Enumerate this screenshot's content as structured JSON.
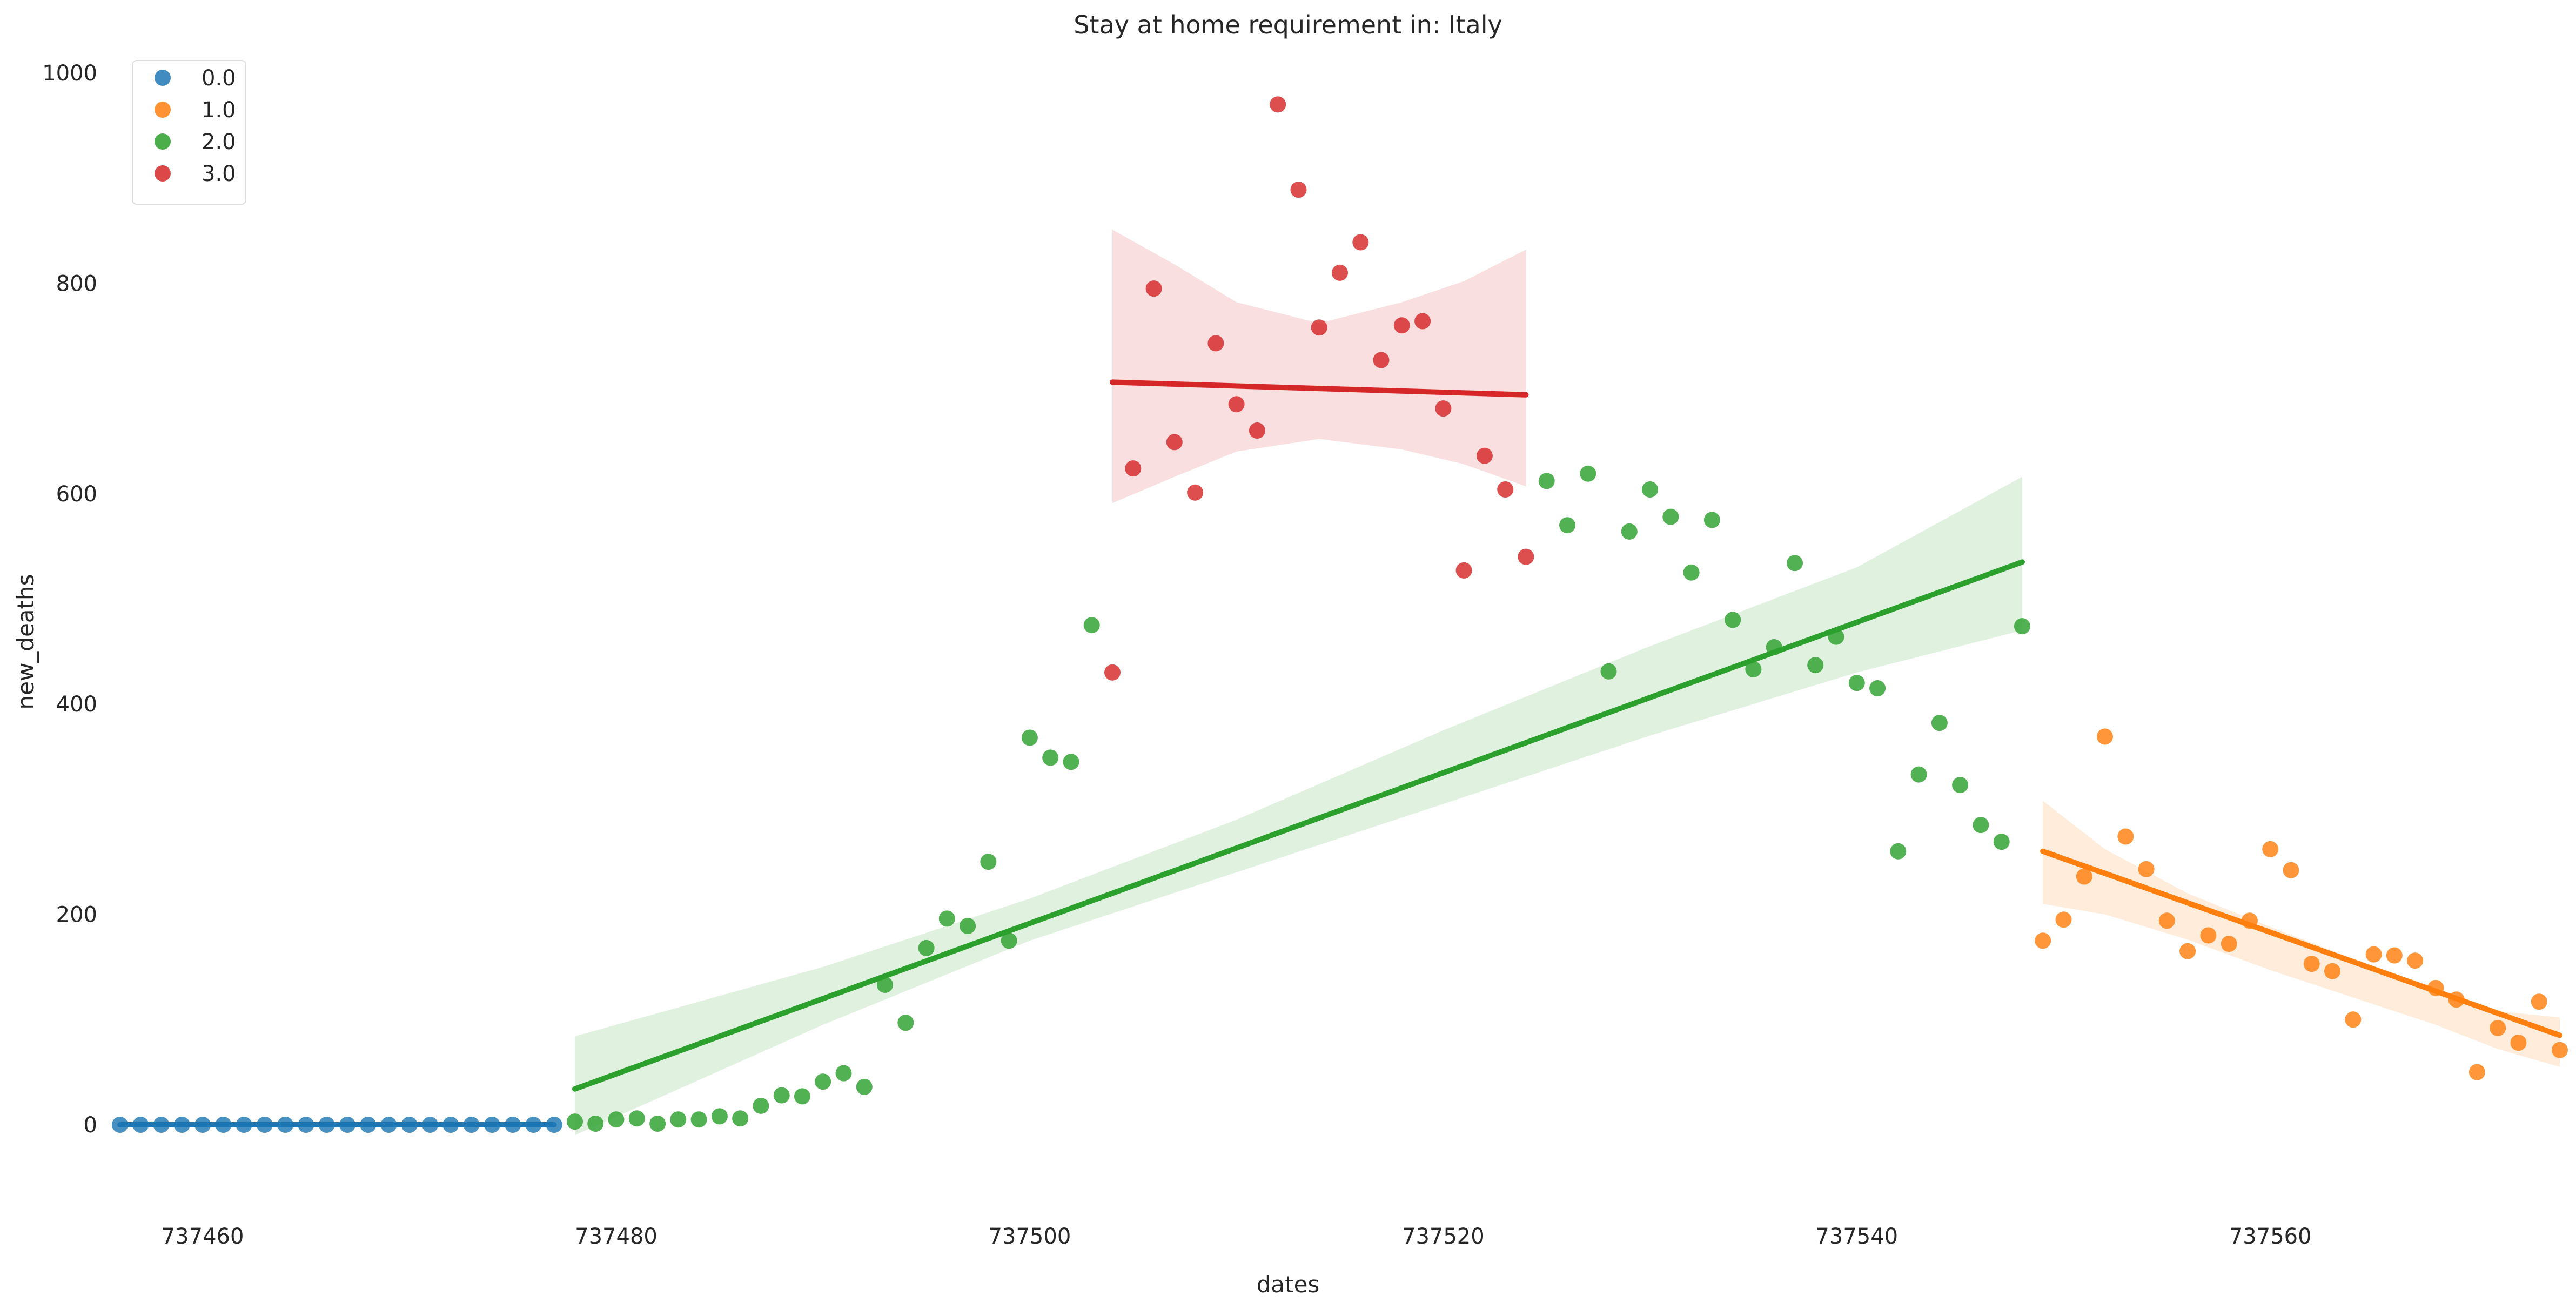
{
  "chart_data": {
    "type": "scatter",
    "title": "Stay at home requirement in: Italy",
    "xlabel": "dates",
    "ylabel": "new_deaths",
    "xlim": [
      737456,
      737574
    ],
    "ylim": [
      -75,
      1000
    ],
    "xticks": [
      737460,
      737480,
      737500,
      737520,
      737540,
      737560
    ],
    "yticks": [
      0,
      200,
      400,
      600,
      800,
      1000
    ],
    "grid": false,
    "legend_position": "top-left",
    "series": [
      {
        "name": "0.0",
        "color": "#1f77b4",
        "points": [
          [
            737456,
            0
          ],
          [
            737457,
            0
          ],
          [
            737458,
            0
          ],
          [
            737459,
            0
          ],
          [
            737460,
            0
          ],
          [
            737461,
            0
          ],
          [
            737462,
            0
          ],
          [
            737463,
            0
          ],
          [
            737464,
            0
          ],
          [
            737465,
            0
          ],
          [
            737466,
            0
          ],
          [
            737467,
            0
          ],
          [
            737468,
            0
          ],
          [
            737469,
            0
          ],
          [
            737470,
            0
          ],
          [
            737471,
            0
          ],
          [
            737472,
            0
          ],
          [
            737473,
            0
          ],
          [
            737474,
            0
          ],
          [
            737475,
            0
          ],
          [
            737476,
            0
          ],
          [
            737477,
            0
          ]
        ],
        "fit": [
          [
            737456,
            0
          ],
          [
            737477,
            0
          ]
        ],
        "band_upper": [
          [
            737456,
            2
          ],
          [
            737477,
            2
          ]
        ],
        "band_lower": [
          [
            737456,
            -2
          ],
          [
            737477,
            -2
          ]
        ]
      },
      {
        "name": "1.0",
        "color": "#ff7f0e",
        "points": [
          [
            737549,
            175
          ],
          [
            737550,
            195
          ],
          [
            737551,
            236
          ],
          [
            737552,
            369
          ],
          [
            737553,
            274
          ],
          [
            737554,
            243
          ],
          [
            737555,
            194
          ],
          [
            737556,
            165
          ],
          [
            737557,
            180
          ],
          [
            737558,
            172
          ],
          [
            737559,
            194
          ],
          [
            737560,
            262
          ],
          [
            737561,
            242
          ],
          [
            737562,
            153
          ],
          [
            737563,
            146
          ],
          [
            737564,
            100
          ],
          [
            737565,
            162
          ],
          [
            737566,
            161
          ],
          [
            737567,
            156
          ],
          [
            737568,
            130
          ],
          [
            737569,
            119
          ],
          [
            737570,
            50
          ],
          [
            737571,
            92
          ],
          [
            737572,
            78
          ],
          [
            737573,
            117
          ],
          [
            737574,
            71
          ]
        ],
        "fit": [
          [
            737549,
            260
          ],
          [
            737574,
            85
          ]
        ],
        "band_upper": [
          [
            737549,
            308
          ],
          [
            737552,
            262
          ],
          [
            737556,
            220
          ],
          [
            737560,
            188
          ],
          [
            737564,
            158
          ],
          [
            737568,
            130
          ],
          [
            737571,
            108
          ],
          [
            737574,
            102
          ]
        ],
        "band_lower": [
          [
            737549,
            210
          ],
          [
            737552,
            200
          ],
          [
            737556,
            176
          ],
          [
            737560,
            147
          ],
          [
            737564,
            121
          ],
          [
            737568,
            95
          ],
          [
            737571,
            72
          ],
          [
            737574,
            55
          ]
        ]
      },
      {
        "name": "2.0",
        "color": "#2ca02c",
        "points": [
          [
            737478,
            3
          ],
          [
            737479,
            1
          ],
          [
            737480,
            5
          ],
          [
            737481,
            6
          ],
          [
            737482,
            1
          ],
          [
            737483,
            5
          ],
          [
            737484,
            5
          ],
          [
            737485,
            8
          ],
          [
            737486,
            6
          ],
          [
            737487,
            18
          ],
          [
            737488,
            28
          ],
          [
            737489,
            27
          ],
          [
            737490,
            41
          ],
          [
            737491,
            49
          ],
          [
            737492,
            36
          ],
          [
            737493,
            133
          ],
          [
            737494,
            97
          ],
          [
            737495,
            168
          ],
          [
            737496,
            196
          ],
          [
            737497,
            189
          ],
          [
            737498,
            250
          ],
          [
            737499,
            175
          ],
          [
            737500,
            368
          ],
          [
            737501,
            349
          ],
          [
            737502,
            345
          ],
          [
            737503,
            475
          ],
          [
            737525,
            612
          ],
          [
            737526,
            570
          ],
          [
            737527,
            619
          ],
          [
            737528,
            431
          ],
          [
            737529,
            564
          ],
          [
            737530,
            604
          ],
          [
            737531,
            578
          ],
          [
            737532,
            525
          ],
          [
            737533,
            575
          ],
          [
            737534,
            480
          ],
          [
            737535,
            433
          ],
          [
            737536,
            454
          ],
          [
            737537,
            534
          ],
          [
            737538,
            437
          ],
          [
            737539,
            464
          ],
          [
            737540,
            420
          ],
          [
            737541,
            415
          ],
          [
            737542,
            260
          ],
          [
            737543,
            333
          ],
          [
            737544,
            382
          ],
          [
            737545,
            323
          ],
          [
            737546,
            285
          ],
          [
            737547,
            269
          ],
          [
            737548,
            474
          ]
        ],
        "fit": [
          [
            737478,
            34
          ],
          [
            737548,
            535
          ]
        ],
        "band_upper": [
          [
            737478,
            84
          ],
          [
            737490,
            150
          ],
          [
            737500,
            215
          ],
          [
            737510,
            290
          ],
          [
            737520,
            375
          ],
          [
            737530,
            455
          ],
          [
            737540,
            530
          ],
          [
            737548,
            616
          ]
        ],
        "band_lower": [
          [
            737478,
            -10
          ],
          [
            737490,
            95
          ],
          [
            737500,
            175
          ],
          [
            737510,
            240
          ],
          [
            737520,
            305
          ],
          [
            737530,
            370
          ],
          [
            737540,
            430
          ],
          [
            737548,
            470
          ]
        ]
      },
      {
        "name": "3.0",
        "color": "#d62728",
        "points": [
          [
            737504,
            430
          ],
          [
            737505,
            624
          ],
          [
            737506,
            795
          ],
          [
            737507,
            649
          ],
          [
            737508,
            601
          ],
          [
            737509,
            743
          ],
          [
            737510,
            685
          ],
          [
            737511,
            660
          ],
          [
            737512,
            970
          ],
          [
            737513,
            889
          ],
          [
            737514,
            758
          ],
          [
            737515,
            810
          ],
          [
            737516,
            839
          ],
          [
            737517,
            727
          ],
          [
            737518,
            760
          ],
          [
            737519,
            764
          ],
          [
            737520,
            681
          ],
          [
            737521,
            527
          ],
          [
            737522,
            636
          ],
          [
            737523,
            604
          ],
          [
            737524,
            540
          ]
        ],
        "fit": [
          [
            737504,
            706
          ],
          [
            737524,
            694
          ]
        ],
        "band_upper": [
          [
            737504,
            851
          ],
          [
            737507,
            818
          ],
          [
            737510,
            782
          ],
          [
            737514,
            762
          ],
          [
            737518,
            782
          ],
          [
            737521,
            802
          ],
          [
            737524,
            832
          ]
        ],
        "band_lower": [
          [
            737504,
            591
          ],
          [
            737507,
            616
          ],
          [
            737510,
            640
          ],
          [
            737514,
            652
          ],
          [
            737518,
            642
          ],
          [
            737521,
            628
          ],
          [
            737524,
            607
          ]
        ]
      }
    ]
  }
}
